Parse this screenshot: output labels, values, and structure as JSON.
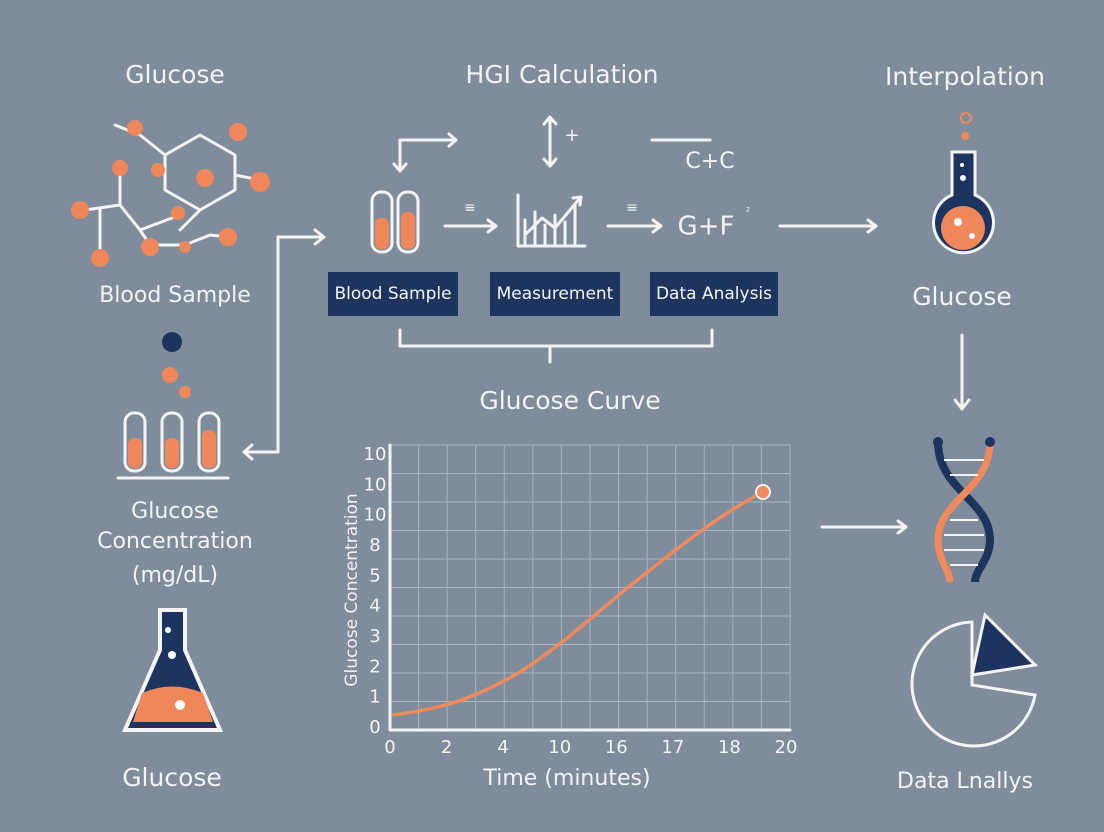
{
  "headings": {
    "left": "Glucose",
    "center": "HGI Calculation",
    "right": "Interpolation"
  },
  "left_column": {
    "sample_label": "Blood Sample",
    "concentration_label": [
      "Glucose",
      "Concentration",
      "(mg/dL)"
    ],
    "bottom_label": "Glucose"
  },
  "workflow": {
    "steps": [
      "Blood Sample",
      "Measurement",
      "Data Analysis"
    ],
    "arrow_marks": [
      "≡",
      "≡"
    ],
    "formula_top": "C+C",
    "formula": "G+F",
    "formula_sup": "²",
    "updown_mark": "↕+"
  },
  "curve_panel": {
    "title": "Glucose Curve",
    "y_label": "Glucose Concentration",
    "x_label": "Time (minutes)",
    "y_tick_labels": [
      "0",
      "1",
      "2",
      "3",
      "4",
      "5",
      "8",
      "10",
      "10",
      "10"
    ],
    "x_tick_labels": [
      "0",
      "2",
      "4",
      "10",
      "16",
      "17",
      "18",
      "20"
    ]
  },
  "right_column": {
    "flask_label": "Glucose",
    "bottom_label": "Data Lnallys"
  }
}
